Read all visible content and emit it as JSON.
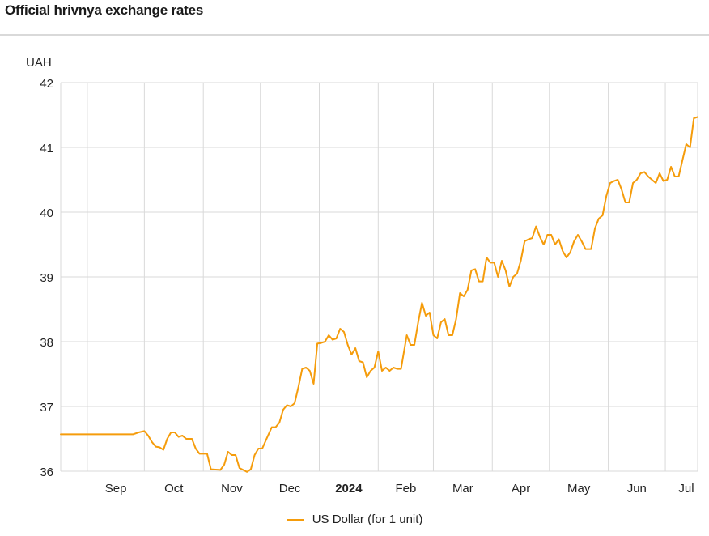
{
  "header": {
    "title": "Official hrivnya exchange rates"
  },
  "colors": {
    "series": "#f59c0b",
    "grid": "#d9d9d9",
    "text": "#222222"
  },
  "chart_data": {
    "type": "line",
    "title": "Official hrivnya exchange rates",
    "ylabel": "UAH",
    "xlabel": "",
    "ylim": [
      36,
      42
    ],
    "xlim": [
      "2023-08-18",
      "2024-07-18"
    ],
    "yticks": [
      36,
      37,
      38,
      39,
      40,
      41,
      42
    ],
    "x_ticks": [
      {
        "date": "2023-09-01",
        "label": "Sep",
        "bold": false
      },
      {
        "date": "2023-10-01",
        "label": "Oct",
        "bold": false
      },
      {
        "date": "2023-11-01",
        "label": "Nov",
        "bold": false
      },
      {
        "date": "2023-12-01",
        "label": "Dec",
        "bold": false
      },
      {
        "date": "2024-01-01",
        "label": "2024",
        "bold": true
      },
      {
        "date": "2024-02-01",
        "label": "Feb",
        "bold": false
      },
      {
        "date": "2024-03-01",
        "label": "Mar",
        "bold": false
      },
      {
        "date": "2024-04-01",
        "label": "Apr",
        "bold": false
      },
      {
        "date": "2024-05-01",
        "label": "May",
        "bold": false
      },
      {
        "date": "2024-06-01",
        "label": "Jun",
        "bold": false
      },
      {
        "date": "2024-07-01",
        "label": "Jul",
        "bold": false
      }
    ],
    "grid": true,
    "legend": "bottom-center",
    "series": [
      {
        "name": "US Dollar (for 1 unit)",
        "points": [
          [
            "2023-08-18",
            36.57
          ],
          [
            "2023-09-01",
            36.57
          ],
          [
            "2023-09-15",
            36.57
          ],
          [
            "2023-09-25",
            36.57
          ],
          [
            "2023-09-28",
            36.6
          ],
          [
            "2023-10-01",
            36.62
          ],
          [
            "2023-10-03",
            36.55
          ],
          [
            "2023-10-05",
            36.45
          ],
          [
            "2023-10-07",
            36.38
          ],
          [
            "2023-10-09",
            36.37
          ],
          [
            "2023-10-11",
            36.33
          ],
          [
            "2023-10-13",
            36.5
          ],
          [
            "2023-10-15",
            36.6
          ],
          [
            "2023-10-17",
            36.6
          ],
          [
            "2023-10-19",
            36.53
          ],
          [
            "2023-10-21",
            36.55
          ],
          [
            "2023-10-23",
            36.5
          ],
          [
            "2023-10-26",
            36.5
          ],
          [
            "2023-10-28",
            36.35
          ],
          [
            "2023-10-30",
            36.27
          ],
          [
            "2023-11-03",
            36.27
          ],
          [
            "2023-11-05",
            36.03
          ],
          [
            "2023-11-10",
            36.02
          ],
          [
            "2023-11-12",
            36.1
          ],
          [
            "2023-11-14",
            36.3
          ],
          [
            "2023-11-16",
            36.25
          ],
          [
            "2023-11-18",
            36.25
          ],
          [
            "2023-11-20",
            36.05
          ],
          [
            "2023-11-22",
            36.02
          ],
          [
            "2023-11-24",
            35.99
          ],
          [
            "2023-11-26",
            36.03
          ],
          [
            "2023-11-28",
            36.25
          ],
          [
            "2023-11-30",
            36.35
          ],
          [
            "2023-12-02",
            36.35
          ],
          [
            "2023-12-05",
            36.55
          ],
          [
            "2023-12-07",
            36.68
          ],
          [
            "2023-12-09",
            36.68
          ],
          [
            "2023-12-11",
            36.75
          ],
          [
            "2023-12-13",
            36.95
          ],
          [
            "2023-12-15",
            37.02
          ],
          [
            "2023-12-17",
            37.0
          ],
          [
            "2023-12-19",
            37.05
          ],
          [
            "2023-12-21",
            37.3
          ],
          [
            "2023-12-23",
            37.58
          ],
          [
            "2023-12-25",
            37.6
          ],
          [
            "2023-12-27",
            37.55
          ],
          [
            "2023-12-29",
            37.35
          ],
          [
            "2023-12-31",
            37.97
          ],
          [
            "2024-01-02",
            37.98
          ],
          [
            "2024-01-04",
            38.0
          ],
          [
            "2024-01-06",
            38.1
          ],
          [
            "2024-01-08",
            38.03
          ],
          [
            "2024-01-10",
            38.05
          ],
          [
            "2024-01-12",
            38.2
          ],
          [
            "2024-01-14",
            38.15
          ],
          [
            "2024-01-16",
            37.95
          ],
          [
            "2024-01-18",
            37.8
          ],
          [
            "2024-01-20",
            37.9
          ],
          [
            "2024-01-22",
            37.7
          ],
          [
            "2024-01-24",
            37.68
          ],
          [
            "2024-01-26",
            37.45
          ],
          [
            "2024-01-28",
            37.55
          ],
          [
            "2024-01-30",
            37.6
          ],
          [
            "2024-02-01",
            37.85
          ],
          [
            "2024-02-03",
            37.55
          ],
          [
            "2024-02-05",
            37.6
          ],
          [
            "2024-02-07",
            37.55
          ],
          [
            "2024-02-09",
            37.6
          ],
          [
            "2024-02-11",
            37.58
          ],
          [
            "2024-02-13",
            37.58
          ],
          [
            "2024-02-16",
            38.1
          ],
          [
            "2024-02-18",
            37.95
          ],
          [
            "2024-02-20",
            37.95
          ],
          [
            "2024-02-22",
            38.3
          ],
          [
            "2024-02-24",
            38.6
          ],
          [
            "2024-02-26",
            38.4
          ],
          [
            "2024-02-28",
            38.45
          ],
          [
            "2024-03-01",
            38.1
          ],
          [
            "2024-03-03",
            38.05
          ],
          [
            "2024-03-05",
            38.3
          ],
          [
            "2024-03-07",
            38.35
          ],
          [
            "2024-03-09",
            38.1
          ],
          [
            "2024-03-11",
            38.1
          ],
          [
            "2024-03-13",
            38.35
          ],
          [
            "2024-03-15",
            38.75
          ],
          [
            "2024-03-17",
            38.7
          ],
          [
            "2024-03-19",
            38.8
          ],
          [
            "2024-03-21",
            39.1
          ],
          [
            "2024-03-23",
            39.12
          ],
          [
            "2024-03-25",
            38.93
          ],
          [
            "2024-03-27",
            38.93
          ],
          [
            "2024-03-29",
            39.3
          ],
          [
            "2024-03-31",
            39.22
          ],
          [
            "2024-04-02",
            39.22
          ],
          [
            "2024-04-04",
            39.0
          ],
          [
            "2024-04-06",
            39.25
          ],
          [
            "2024-04-08",
            39.1
          ],
          [
            "2024-04-10",
            38.85
          ],
          [
            "2024-04-12",
            39.0
          ],
          [
            "2024-04-14",
            39.05
          ],
          [
            "2024-04-16",
            39.25
          ],
          [
            "2024-04-18",
            39.55
          ],
          [
            "2024-04-20",
            39.58
          ],
          [
            "2024-04-22",
            39.6
          ],
          [
            "2024-04-24",
            39.78
          ],
          [
            "2024-04-26",
            39.62
          ],
          [
            "2024-04-28",
            39.5
          ],
          [
            "2024-04-30",
            39.65
          ],
          [
            "2024-05-02",
            39.65
          ],
          [
            "2024-05-04",
            39.5
          ],
          [
            "2024-05-06",
            39.58
          ],
          [
            "2024-05-08",
            39.4
          ],
          [
            "2024-05-10",
            39.3
          ],
          [
            "2024-05-12",
            39.38
          ],
          [
            "2024-05-14",
            39.55
          ],
          [
            "2024-05-16",
            39.65
          ],
          [
            "2024-05-18",
            39.55
          ],
          [
            "2024-05-20",
            39.43
          ],
          [
            "2024-05-23",
            39.43
          ],
          [
            "2024-05-25",
            39.75
          ],
          [
            "2024-05-27",
            39.9
          ],
          [
            "2024-05-29",
            39.95
          ],
          [
            "2024-05-31",
            40.25
          ],
          [
            "2024-06-02",
            40.45
          ],
          [
            "2024-06-04",
            40.48
          ],
          [
            "2024-06-06",
            40.5
          ],
          [
            "2024-06-08",
            40.35
          ],
          [
            "2024-06-10",
            40.15
          ],
          [
            "2024-06-12",
            40.15
          ],
          [
            "2024-06-14",
            40.45
          ],
          [
            "2024-06-16",
            40.5
          ],
          [
            "2024-06-18",
            40.6
          ],
          [
            "2024-06-20",
            40.62
          ],
          [
            "2024-06-22",
            40.55
          ],
          [
            "2024-06-24",
            40.5
          ],
          [
            "2024-06-26",
            40.45
          ],
          [
            "2024-06-28",
            40.6
          ],
          [
            "2024-06-30",
            40.48
          ],
          [
            "2024-07-02",
            40.5
          ],
          [
            "2024-07-04",
            40.7
          ],
          [
            "2024-07-06",
            40.55
          ],
          [
            "2024-07-08",
            40.55
          ],
          [
            "2024-07-10",
            40.8
          ],
          [
            "2024-07-12",
            41.05
          ],
          [
            "2024-07-14",
            41.0
          ],
          [
            "2024-07-16",
            41.45
          ],
          [
            "2024-07-18",
            41.47
          ]
        ]
      }
    ]
  }
}
